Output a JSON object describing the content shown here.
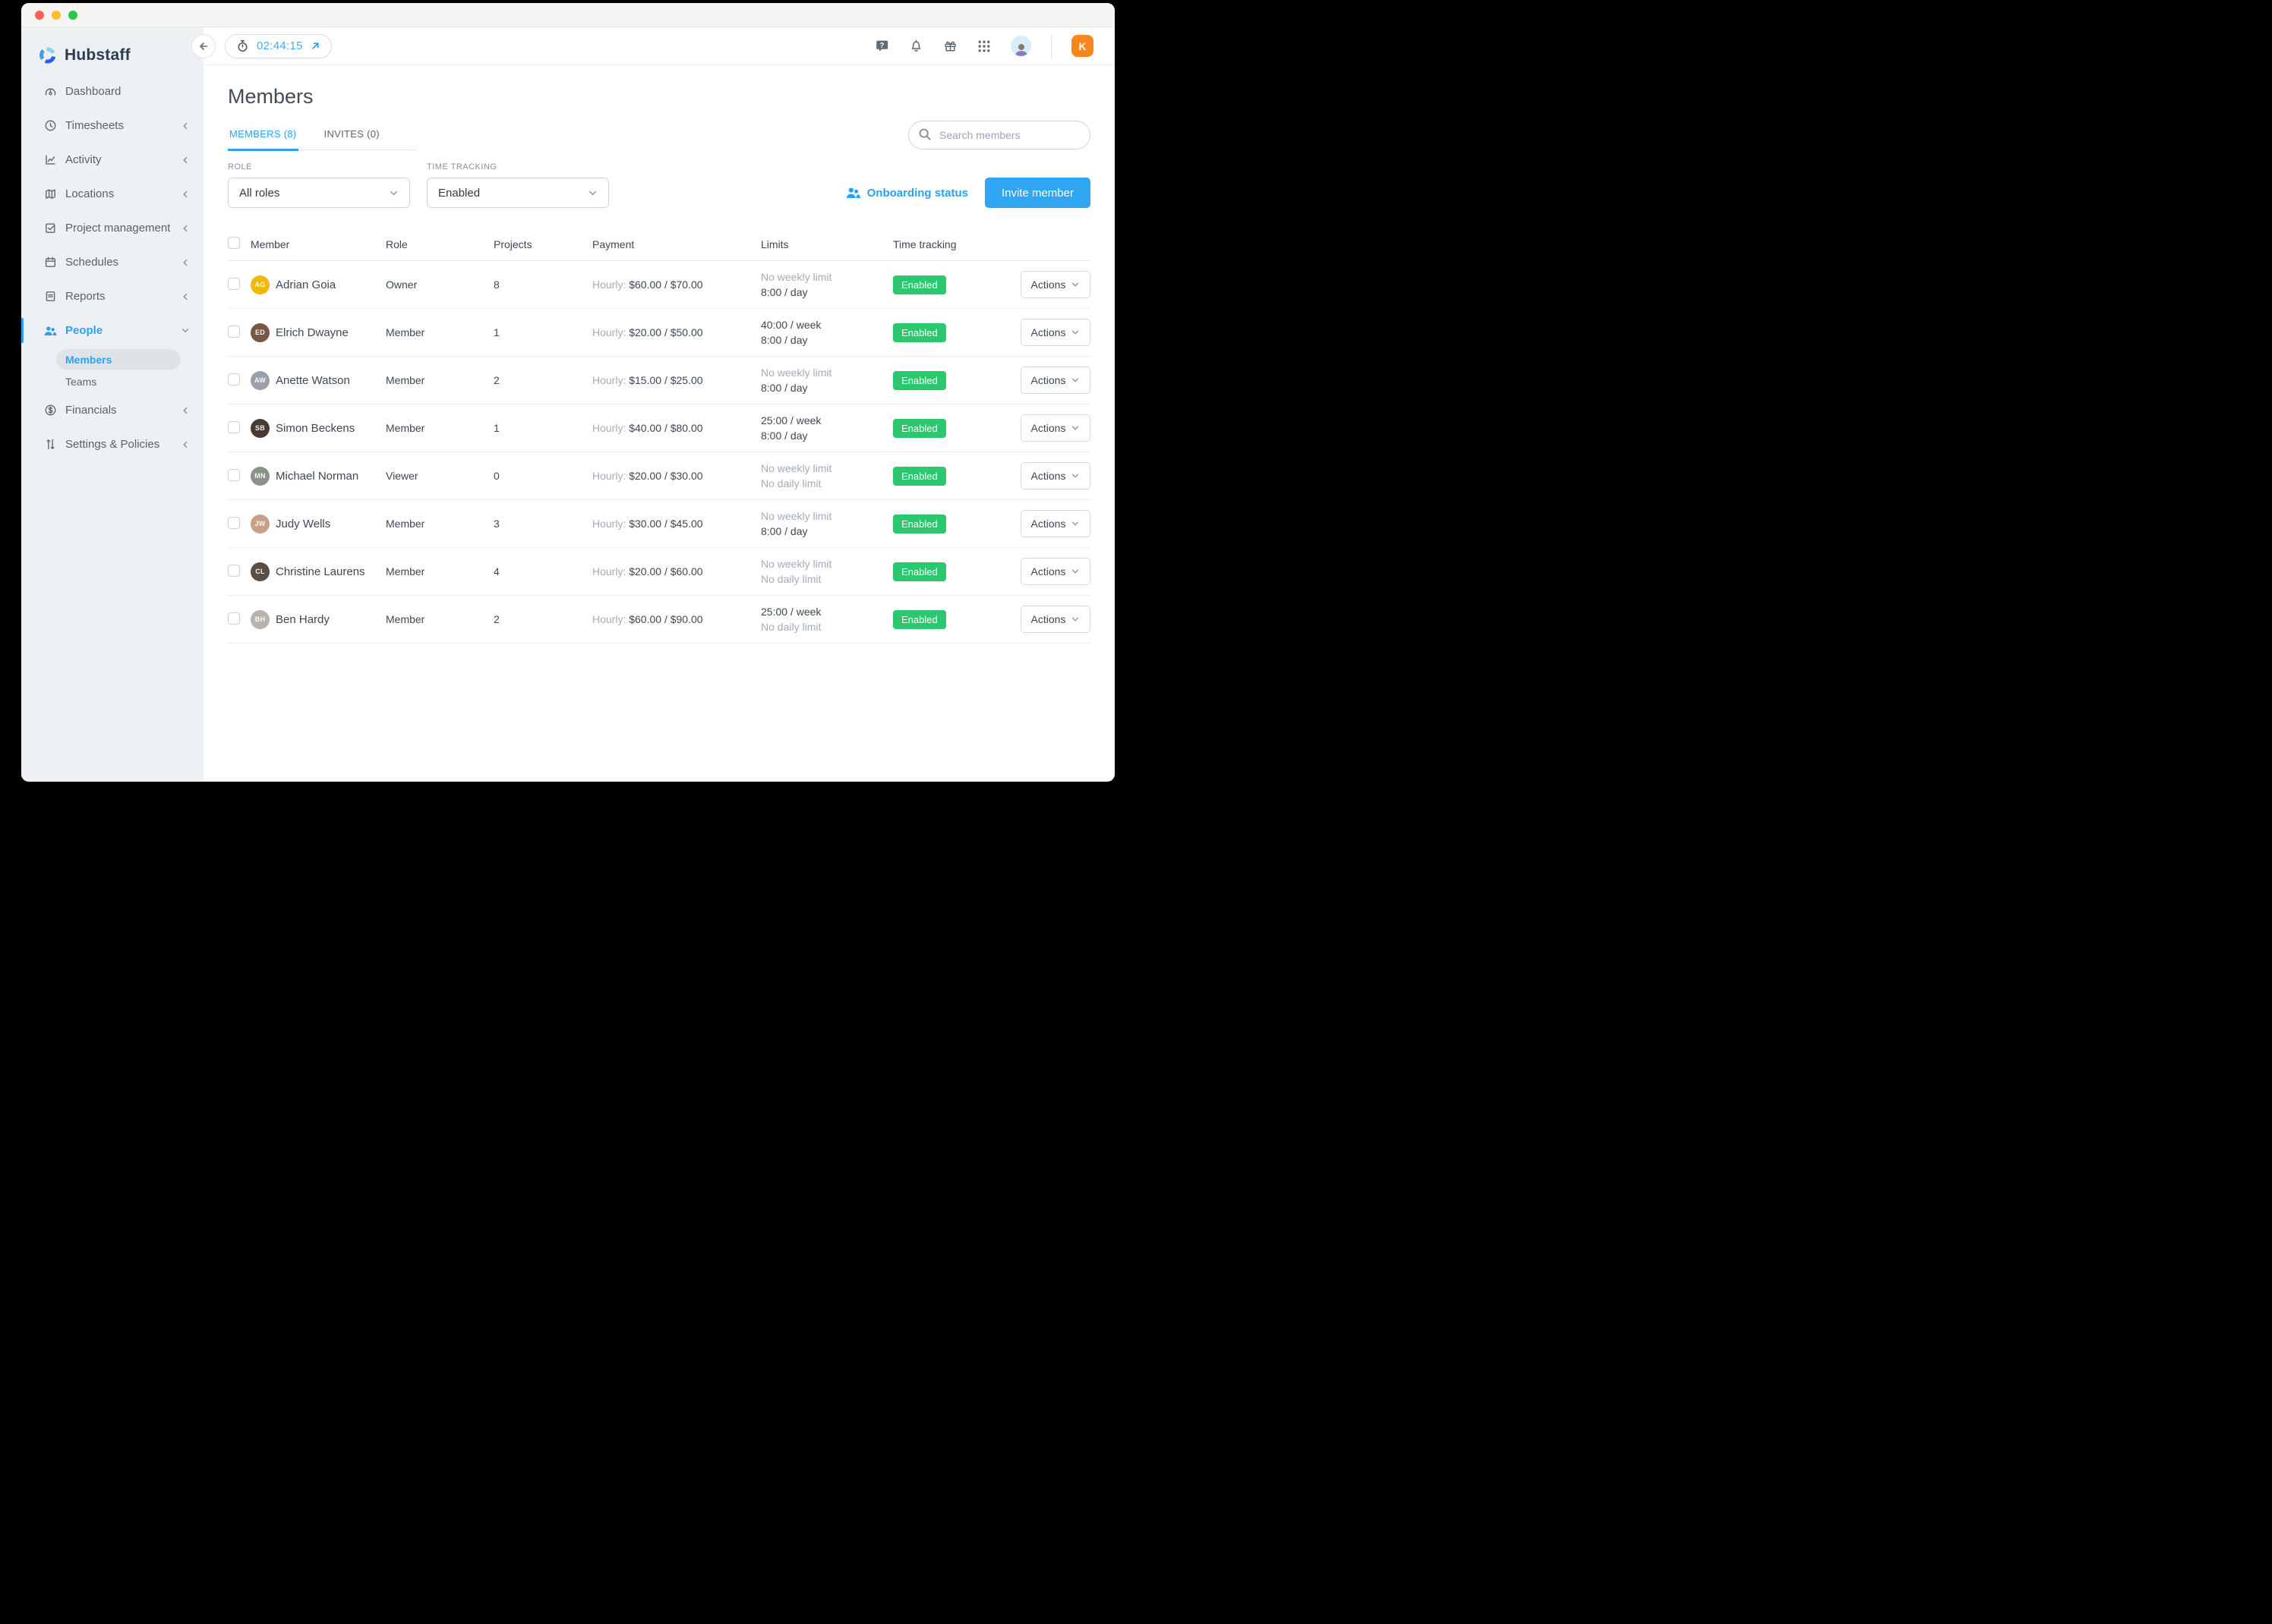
{
  "colors": {
    "accent_blue": "#2ba1f1",
    "enabled_green": "#2bc870",
    "org_orange": "#f8861d",
    "sidebar_bg": "#edf1f4"
  },
  "titlebar": {
    "buttons": [
      "close",
      "minimize",
      "zoom"
    ]
  },
  "sidebar": {
    "logo_text": "Hubstaff",
    "items": [
      {
        "id": "dashboard",
        "label": "Dashboard",
        "icon": "dashboard-icon",
        "chevron": null,
        "active": false
      },
      {
        "id": "timesheets",
        "label": "Timesheets",
        "icon": "timesheets-icon",
        "chevron": "collapsed",
        "active": false
      },
      {
        "id": "activity",
        "label": "Activity",
        "icon": "activity-icon",
        "chevron": "collapsed",
        "active": false
      },
      {
        "id": "locations",
        "label": "Locations",
        "icon": "locations-icon",
        "chevron": "collapsed",
        "active": false
      },
      {
        "id": "project-management",
        "label": "Project management",
        "icon": "project-management-icon",
        "chevron": "collapsed",
        "active": false
      },
      {
        "id": "schedules",
        "label": "Schedules",
        "icon": "schedules-icon",
        "chevron": "collapsed",
        "active": false
      },
      {
        "id": "reports",
        "label": "Reports",
        "icon": "reports-icon",
        "chevron": "collapsed",
        "active": false
      },
      {
        "id": "people",
        "label": "People",
        "icon": "people-icon",
        "chevron": "expanded",
        "active": true,
        "sub": [
          {
            "label": "Members",
            "active": true
          },
          {
            "label": "Teams",
            "active": false
          }
        ]
      },
      {
        "id": "financials",
        "label": "Financials",
        "icon": "financials-icon",
        "chevron": "collapsed",
        "active": false
      },
      {
        "id": "settings-policies",
        "label": "Settings & Policies",
        "icon": "settings-policies-icon",
        "chevron": "collapsed",
        "active": false
      }
    ]
  },
  "topbar": {
    "timer_value": "02:44:15"
  },
  "header": {
    "title": "Members",
    "tabs": [
      {
        "label": "MEMBERS (8)",
        "active": true
      },
      {
        "label": "INVITES (0)",
        "active": false
      }
    ],
    "search_placeholder": "Search members",
    "onboarding_link": "Onboarding status",
    "invite_button": "Invite member"
  },
  "filters": {
    "role_label": "ROLE",
    "role_value": "All roles",
    "tracking_label": "TIME TRACKING",
    "tracking_value": "Enabled"
  },
  "table": {
    "columns": [
      "Member",
      "Role",
      "Projects",
      "Payment",
      "Limits",
      "Time tracking"
    ],
    "actions_label": "Actions",
    "rows": [
      {
        "name": "Adrian Goia",
        "initials": "AG",
        "avatar_color": "#f2b809",
        "role": "Owner",
        "projects": "8",
        "payment_label": "Hourly:",
        "payment_value": "$60.00 / $70.00",
        "limit_week": {
          "text": "No weekly limit",
          "muted": true
        },
        "limit_day": {
          "text": "8:00 / day",
          "muted": false
        },
        "tracking_badge": "Enabled"
      },
      {
        "name": "Elrich Dwayne",
        "initials": "ED",
        "avatar_color": "#7a5647",
        "role": "Member",
        "projects": "1",
        "payment_label": "Hourly:",
        "payment_value": "$20.00 / $50.00",
        "limit_week": {
          "text": "40:00 / week",
          "muted": false
        },
        "limit_day": {
          "text": "8:00 / day",
          "muted": false
        },
        "tracking_badge": "Enabled"
      },
      {
        "name": "Anette Watson",
        "initials": "AW",
        "avatar_color": "#9aa0a8",
        "role": "Member",
        "projects": "2",
        "payment_label": "Hourly:",
        "payment_value": "$15.00 / $25.00",
        "limit_week": {
          "text": "No weekly limit",
          "muted": true
        },
        "limit_day": {
          "text": "8:00 / day",
          "muted": false
        },
        "tracking_badge": "Enabled"
      },
      {
        "name": "Simon Beckens",
        "initials": "SB",
        "avatar_color": "#4a3a33",
        "role": "Member",
        "projects": "1",
        "payment_label": "Hourly:",
        "payment_value": "$40.00 / $80.00",
        "limit_week": {
          "text": "25:00 / week",
          "muted": false
        },
        "limit_day": {
          "text": "8:00 / day",
          "muted": false
        },
        "tracking_badge": "Enabled"
      },
      {
        "name": "Michael Norman",
        "initials": "MN",
        "avatar_color": "#8b9289",
        "role": "Viewer",
        "projects": "0",
        "payment_label": "Hourly:",
        "payment_value": "$20.00 / $30.00",
        "limit_week": {
          "text": "No weekly limit",
          "muted": true
        },
        "limit_day": {
          "text": "No daily limit",
          "muted": true
        },
        "tracking_badge": "Enabled"
      },
      {
        "name": "Judy Wells",
        "initials": "JW",
        "avatar_color": "#c99f85",
        "role": "Member",
        "projects": "3",
        "payment_label": "Hourly:",
        "payment_value": "$30.00 / $45.00",
        "limit_week": {
          "text": "No weekly limit",
          "muted": true
        },
        "limit_day": {
          "text": "8:00 / day",
          "muted": false
        },
        "tracking_badge": "Enabled"
      },
      {
        "name": "Christine Laurens",
        "initials": "CL",
        "avatar_color": "#5a4d42",
        "role": "Member",
        "projects": "4",
        "payment_label": "Hourly:",
        "payment_value": "$20.00 / $60.00",
        "limit_week": {
          "text": "No weekly limit",
          "muted": true
        },
        "limit_day": {
          "text": "No daily limit",
          "muted": true
        },
        "tracking_badge": "Enabled"
      },
      {
        "name": "Ben Hardy",
        "initials": "BH",
        "avatar_color": "#b9b3ac",
        "role": "Member",
        "projects": "2",
        "payment_label": "Hourly:",
        "payment_value": "$60.00 / $90.00",
        "limit_week": {
          "text": "25:00 / week",
          "muted": false
        },
        "limit_day": {
          "text": "No daily limit",
          "muted": true
        },
        "tracking_badge": "Enabled"
      }
    ]
  },
  "org": {
    "badge_letter": "K"
  }
}
